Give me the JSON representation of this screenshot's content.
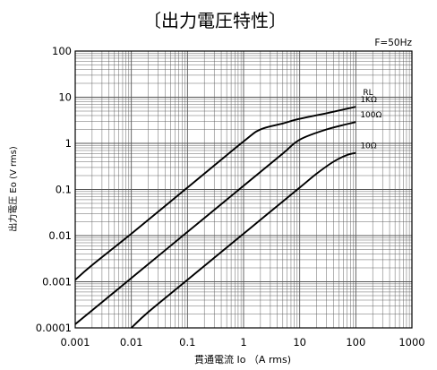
{
  "chart_data": {
    "type": "line",
    "title": "〔出力電圧特性〕",
    "note": "F=50Hz",
    "xlabel": "貫通電流 Io （A rms)",
    "ylabel": "出力電圧 Eo (V rms)",
    "x_scale": "log",
    "y_scale": "log",
    "xlim": [
      0.001,
      1000
    ],
    "ylim": [
      0.0001,
      100
    ],
    "x_ticks": [
      "0.001",
      "0.01",
      "0.1",
      "1",
      "10",
      "100",
      "1000"
    ],
    "y_ticks": [
      "0.0001",
      "0.001",
      "0.01",
      "0.1",
      "1",
      "10",
      "100"
    ],
    "legend_title": "RL",
    "grid": true,
    "series": [
      {
        "name": "1KΩ",
        "points": [
          [
            0.001,
            0.0011
          ],
          [
            0.002,
            0.0023
          ],
          [
            0.01,
            0.011
          ],
          [
            0.1,
            0.11
          ],
          [
            1,
            1.1
          ],
          [
            2,
            2.0
          ],
          [
            5,
            2.7
          ],
          [
            10,
            3.4
          ],
          [
            30,
            4.5
          ],
          [
            100,
            6.2
          ]
        ]
      },
      {
        "name": "100Ω",
        "points": [
          [
            0.001,
            0.00012
          ],
          [
            0.002,
            0.00024
          ],
          [
            0.01,
            0.0012
          ],
          [
            0.1,
            0.012
          ],
          [
            1,
            0.12
          ],
          [
            5,
            0.6
          ],
          [
            10,
            1.2
          ],
          [
            30,
            2.0
          ],
          [
            100,
            2.9
          ]
        ]
      },
      {
        "name": "10Ω",
        "points": [
          [
            0.01,
            0.0001
          ],
          [
            0.02,
            0.00022
          ],
          [
            0.1,
            0.0011
          ],
          [
            1,
            0.011
          ],
          [
            10,
            0.11
          ],
          [
            20,
            0.22
          ],
          [
            40,
            0.4
          ],
          [
            70,
            0.56
          ],
          [
            100,
            0.62
          ]
        ]
      }
    ]
  }
}
